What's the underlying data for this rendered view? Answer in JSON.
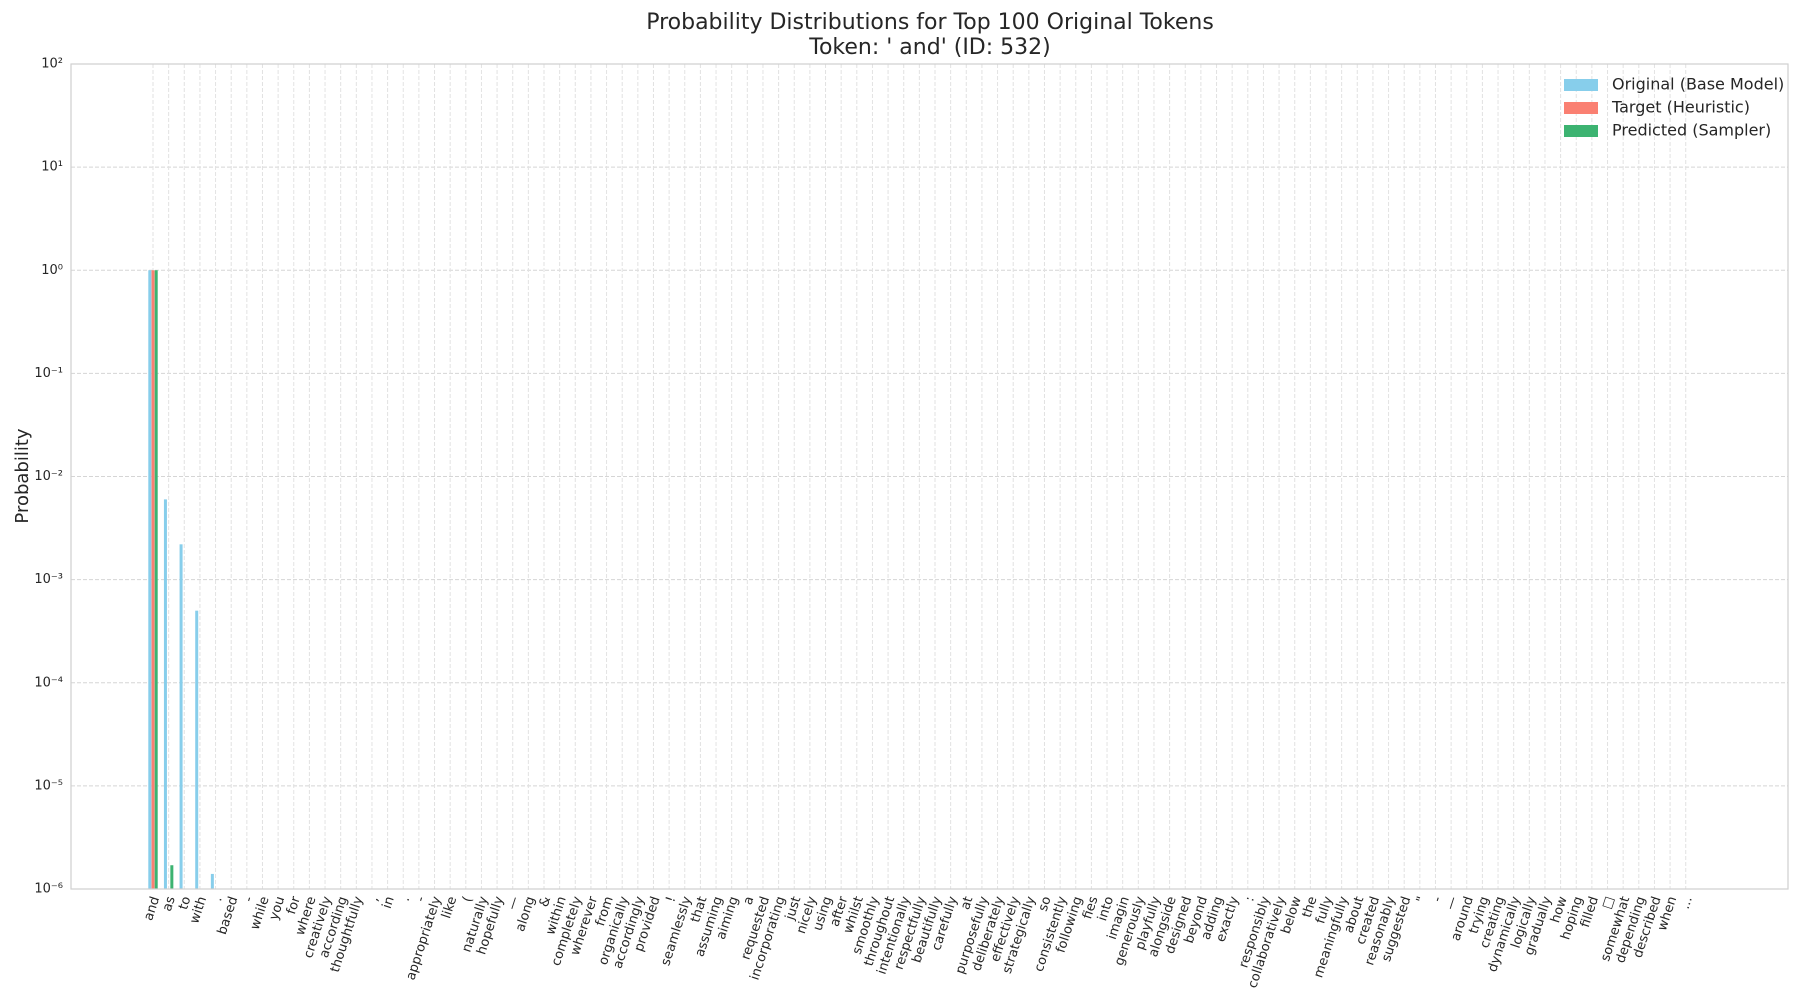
{
  "chart_data": {
    "type": "bar",
    "title": "Probability Distributions for Top 100 Original Tokens",
    "subtitle": "Token: ' and' (ID: 532)",
    "y_label": "Probability",
    "log_scale": true,
    "grid": true,
    "legend": "upper right",
    "ylim": [
      1e-06,
      100
    ],
    "yticks": [
      {
        "value": 1e-06,
        "label": "10⁻⁶"
      },
      {
        "value": 1e-05,
        "label": "10⁻⁵"
      },
      {
        "value": 0.0001,
        "label": "10⁻⁴"
      },
      {
        "value": 0.001,
        "label": "10⁻³"
      },
      {
        "value": 0.01,
        "label": "10⁻²"
      },
      {
        "value": 0.1,
        "label": "10⁻¹"
      },
      {
        "value": 1,
        "label": "10⁰"
      },
      {
        "value": 10,
        "label": "10¹"
      },
      {
        "value": 100,
        "label": "10²"
      }
    ],
    "categories": [
      "and",
      "as",
      "to",
      "with",
      ".",
      "based",
      "-",
      "while",
      "you",
      "for",
      "where",
      "creatively",
      "according",
      "thoughtfully",
      ",",
      "in",
      ".",
      "-",
      "appropriately",
      "like",
      "(",
      "naturally",
      "hopefully",
      "—",
      "along",
      "&",
      "within",
      "completely",
      "wherever",
      "from",
      "organically",
      "accordingly",
      "provided",
      "!",
      "seamlessly",
      "that",
      "assuming",
      "aiming",
      "a",
      "requested",
      "incorporating",
      "just",
      "nicely",
      "using",
      "after",
      "whilst",
      "smoothly",
      "throughout",
      "intentionally",
      "respectfully",
      "beautifully",
      "carefully",
      "at",
      "purposefully",
      "deliberately",
      "effectively",
      "strategically",
      "so",
      "consistently",
      "following",
      "fies",
      "into",
      "imagin",
      "generously",
      "playfully",
      "alongside",
      "designed",
      "beyond",
      "adding",
      "exactly",
      ":",
      "responsibly",
      "collaboratively",
      "below",
      "the",
      "fully",
      "meaningfully",
      "about",
      "created",
      "reasonably",
      "suggested",
      "\"",
      "-",
      "—",
      "around",
      "trying",
      "creating",
      "dynamically",
      "logically",
      "gradually",
      "how",
      "hoping",
      "filled",
      "□",
      "somewhat",
      "depending",
      "described",
      "when",
      "..."
    ],
    "series": [
      {
        "name": "Original (Base Model)",
        "color": "#87ceeb",
        "values": [
          1.0,
          0.006,
          0.0022,
          0.0005,
          1.4e-06,
          null,
          null,
          null,
          null,
          null,
          null,
          null,
          null,
          null,
          null,
          null,
          null,
          null,
          null,
          null,
          null,
          null,
          null,
          null,
          null,
          null,
          null,
          null,
          null,
          null,
          null,
          null,
          null,
          null,
          null,
          null,
          null,
          null,
          null,
          null,
          null,
          null,
          null,
          null,
          null,
          null,
          null,
          null,
          null,
          null,
          null,
          null,
          null,
          null,
          null,
          null,
          null,
          null,
          null,
          null,
          null,
          null,
          null,
          null,
          null,
          null,
          null,
          null,
          null,
          null,
          null,
          null,
          null,
          null,
          null,
          null,
          null,
          null,
          null,
          null,
          null,
          null,
          null,
          null,
          null,
          null,
          null,
          null,
          null,
          null,
          null,
          null,
          null,
          null,
          null,
          null,
          null,
          null,
          null
        ]
      },
      {
        "name": "Target (Heuristic)",
        "color": "#fa8072",
        "values": [
          1.0,
          null,
          null,
          null,
          null,
          null,
          null,
          null,
          null,
          null,
          null,
          null,
          null,
          null,
          null,
          null,
          null,
          null,
          null,
          null,
          null,
          null,
          null,
          null,
          null,
          null,
          null,
          null,
          null,
          null,
          null,
          null,
          null,
          null,
          null,
          null,
          null,
          null,
          null,
          null,
          null,
          null,
          null,
          null,
          null,
          null,
          null,
          null,
          null,
          null,
          null,
          null,
          null,
          null,
          null,
          null,
          null,
          null,
          null,
          null,
          null,
          null,
          null,
          null,
          null,
          null,
          null,
          null,
          null,
          null,
          null,
          null,
          null,
          null,
          null,
          null,
          null,
          null,
          null,
          null,
          null,
          null,
          null,
          null,
          null,
          null,
          null,
          null,
          null,
          null,
          null,
          null,
          null,
          null,
          null,
          null,
          null,
          null,
          null
        ]
      },
      {
        "name": "Predicted (Sampler)",
        "color": "#3cb371",
        "values": [
          1.0,
          1.7e-06,
          null,
          null,
          null,
          null,
          null,
          null,
          null,
          null,
          null,
          null,
          null,
          null,
          null,
          null,
          null,
          null,
          null,
          null,
          null,
          null,
          null,
          null,
          null,
          null,
          null,
          null,
          null,
          null,
          null,
          null,
          null,
          null,
          null,
          null,
          null,
          null,
          null,
          null,
          null,
          null,
          null,
          null,
          null,
          null,
          null,
          null,
          null,
          null,
          null,
          null,
          null,
          null,
          null,
          null,
          null,
          null,
          null,
          null,
          null,
          null,
          null,
          null,
          null,
          null,
          null,
          null,
          null,
          null,
          null,
          null,
          null,
          null,
          null,
          null,
          null,
          null,
          null,
          null,
          null,
          null,
          null,
          null,
          null,
          null,
          null,
          null,
          null,
          null,
          null,
          null,
          null,
          null,
          null,
          null,
          null,
          null,
          null
        ]
      }
    ]
  }
}
